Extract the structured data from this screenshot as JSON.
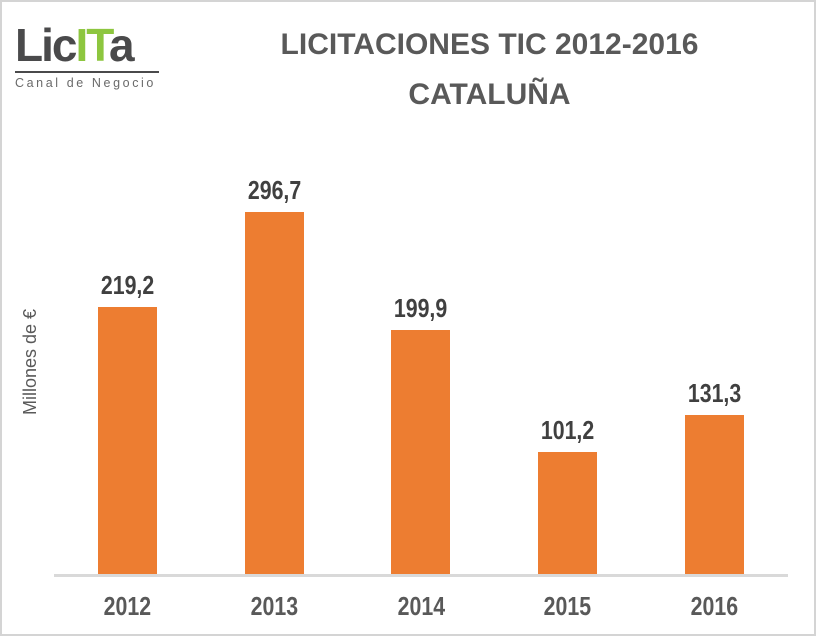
{
  "logo": {
    "part1": "Lic",
    "part2": "IT",
    "part3": "a",
    "tagline": "Canal de Negocio",
    "accent_color": "#8dc63f",
    "text_color": "#4a4a4b"
  },
  "title": {
    "line1": "LICITACIONES TIC 2012-2016",
    "line2": "CATALUÑA",
    "color": "#595959"
  },
  "chart_data": {
    "type": "bar",
    "title": "LICITACIONES TIC 2012-2016 CATALUÑA",
    "categories": [
      "2012",
      "2013",
      "2014",
      "2015",
      "2016"
    ],
    "values": [
      219.2,
      296.7,
      199.9,
      101.2,
      131.3
    ],
    "value_labels": [
      "219,2",
      "296,7",
      "199,9",
      "101,2",
      "131,3"
    ],
    "xlabel": "",
    "ylabel": "Millones de €",
    "ylim": [
      0,
      320
    ],
    "grid": false,
    "legend": false,
    "bar_color": "#ed7d31",
    "axis_line_color": "#d9d9d9",
    "label_color": "#404040",
    "tick_label_color": "#595959"
  }
}
